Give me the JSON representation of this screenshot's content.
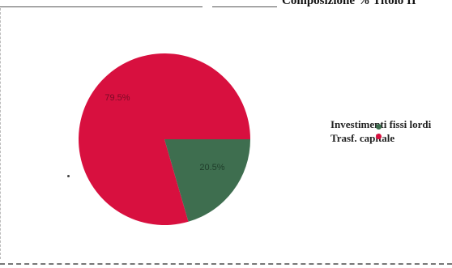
{
  "header": {
    "title": "Composizione % Titolo II"
  },
  "chart_data": {
    "type": "pie",
    "title": "",
    "slices": [
      {
        "label": "Investimenti fissi lordi",
        "value": 79.5,
        "value_label": "79.5%",
        "color": "#d8103f"
      },
      {
        "label": "Trasf. capitale",
        "value": 20.5,
        "value_label": "20.5%",
        "color": "#3e6e4f"
      }
    ],
    "legend": {
      "placement": "right",
      "entries": [
        "Investimenti fissi lordi",
        "Trasf. capitale"
      ]
    }
  }
}
